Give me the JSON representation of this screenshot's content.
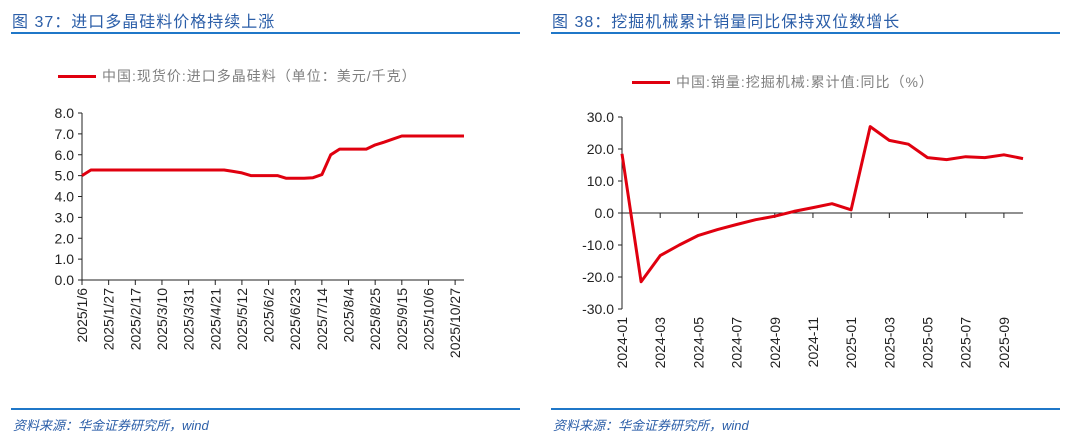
{
  "chart_data": [
    {
      "type": "line",
      "fig_label": "图 37：",
      "title": "进口多晶硅料价格持续上涨",
      "legend": "中国:现货价:进口多晶硅料（单位：美元/千克）",
      "color": "#e0000f",
      "ylim": [
        0,
        8
      ],
      "yticks": [
        "0.0",
        "1.0",
        "2.0",
        "3.0",
        "4.0",
        "5.0",
        "6.0",
        "7.0",
        "8.0"
      ],
      "xtick_labels": [
        "2025/1/6",
        "2025/1/27",
        "2025/2/17",
        "2025/3/10",
        "2025/3/31",
        "2025/4/21",
        "2025/5/12",
        "2025/6/2",
        "2025/6/23",
        "2025/7/14",
        "2025/8/4",
        "2025/8/25",
        "2025/9/15",
        "2025/10/6",
        "2025/10/27"
      ],
      "x_note": "weekly from 2025/1/6",
      "values": [
        5.0,
        5.27,
        5.27,
        5.27,
        5.27,
        5.27,
        5.27,
        5.27,
        5.27,
        5.27,
        5.27,
        5.27,
        5.27,
        5.27,
        5.27,
        5.27,
        5.27,
        5.2,
        5.13,
        5.0,
        5.0,
        5.0,
        5.0,
        4.87,
        4.87,
        4.87,
        4.9,
        5.05,
        6.0,
        6.27,
        6.27,
        6.27,
        6.27,
        6.47,
        6.6,
        6.75,
        6.9,
        6.9,
        6.9,
        6.9,
        6.9,
        6.9,
        6.9,
        6.9
      ],
      "grid": false,
      "legend_position": "top"
    },
    {
      "type": "line",
      "fig_label": "图 38：",
      "title": "挖掘机械累计销量同比保持双位数增长",
      "legend": "中国:销量:挖掘机械:累计值:同比（%）",
      "color": "#e0000f",
      "ylim": [
        -30,
        30
      ],
      "yticks": [
        "-30.0",
        "-20.0",
        "-10.0",
        "0.0",
        "10.0",
        "20.0",
        "30.0"
      ],
      "xtick_labels": [
        "2024-01",
        "2024-03",
        "2024-05",
        "2024-07",
        "2024-09",
        "2024-11",
        "2025-01",
        "2025-03",
        "2025-05",
        "2025-07",
        "2025-09"
      ],
      "x": [
        "2024-01",
        "2024-02",
        "2024-03",
        "2024-04",
        "2024-05",
        "2024-06",
        "2024-07",
        "2024-08",
        "2024-09",
        "2024-10",
        "2024-11",
        "2024-12",
        "2025-01",
        "2025-02",
        "2025-03",
        "2025-04",
        "2025-05",
        "2025-06",
        "2025-07",
        "2025-08",
        "2025-09",
        "2025-10"
      ],
      "values": [
        18.5,
        -21.5,
        -13.3,
        -10.0,
        -7.0,
        -5.2,
        -3.6,
        -2.1,
        -1.0,
        0.5,
        1.7,
        2.9,
        1.0,
        27.0,
        22.7,
        21.5,
        17.3,
        16.7,
        17.6,
        17.3,
        18.2,
        17.0
      ],
      "grid": false,
      "legend_position": "top"
    }
  ],
  "source": "资料来源：华金证券研究所，wind"
}
